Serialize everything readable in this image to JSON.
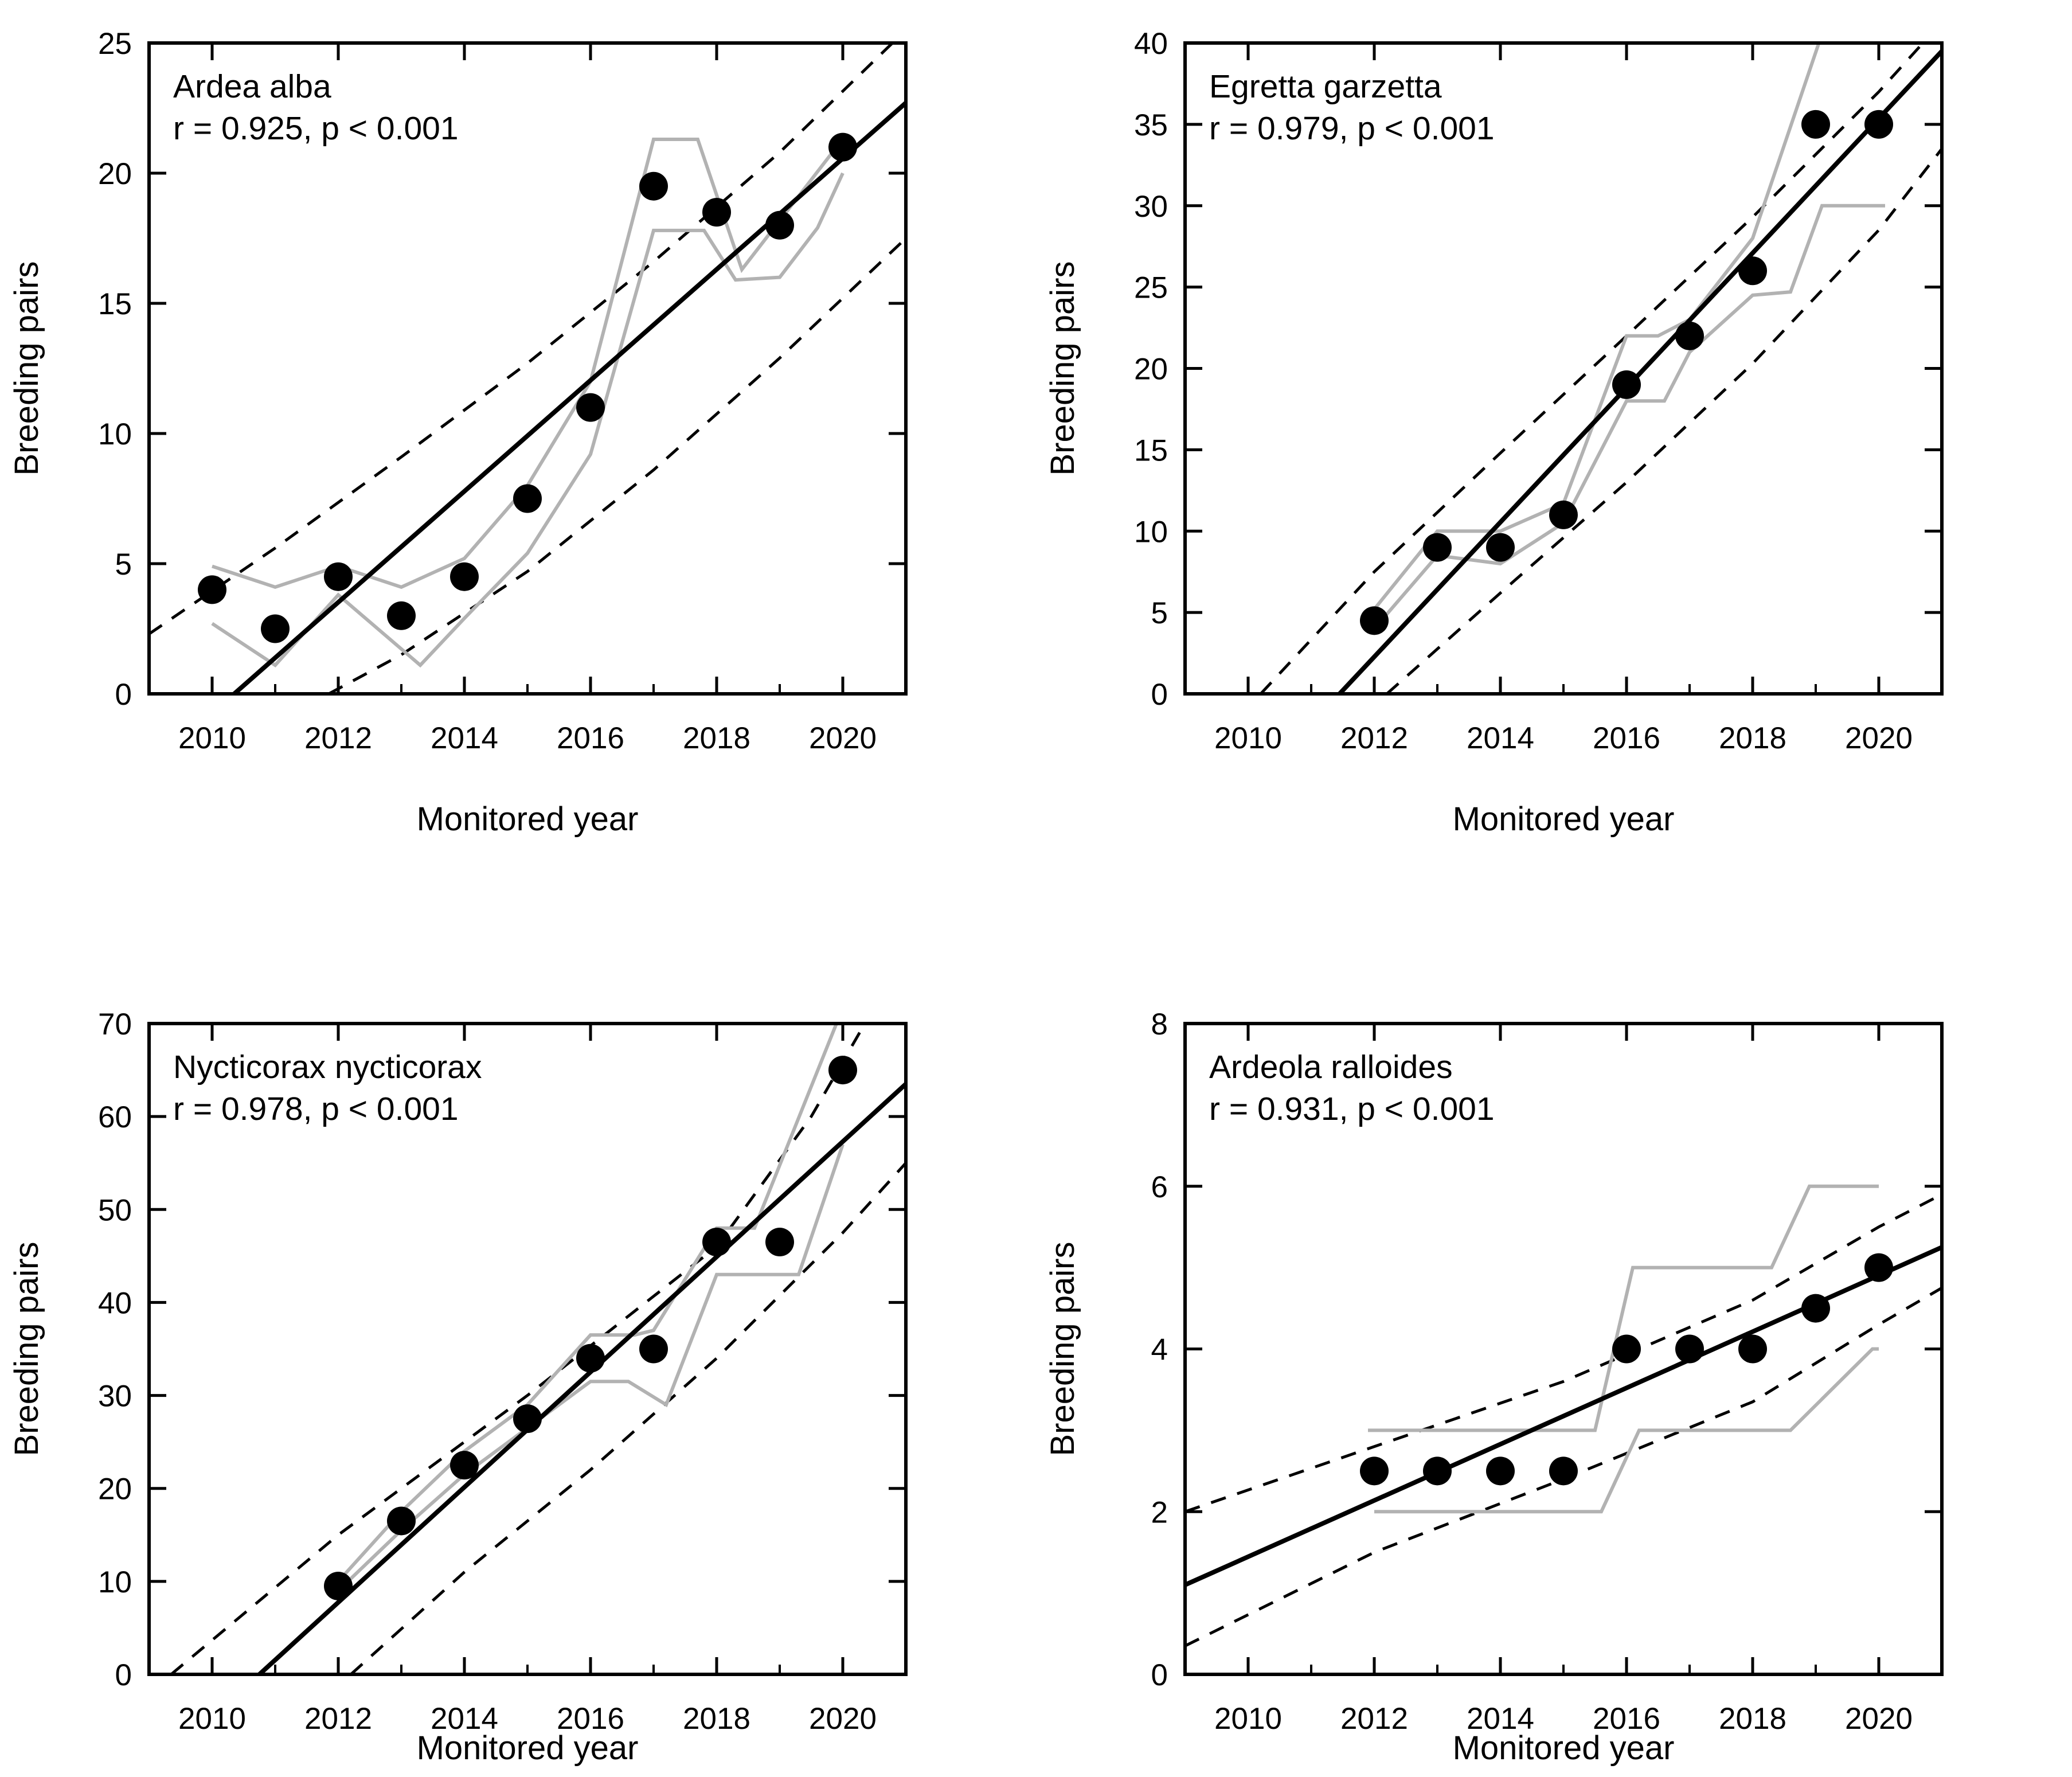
{
  "page": {
    "background": "#ffffff"
  },
  "colors": {
    "points": "#000000",
    "regression": "#000000",
    "confidence": "#000000",
    "range": "#b2b2b2",
    "frame": "#000000",
    "text": "#000000"
  },
  "chart_data": [
    {
      "type": "scatter",
      "species": "Ardea alba",
      "stats_label": "r = 0.925, p < 0.001",
      "xlabel": "Monitored year",
      "ylabel": "Breeding pairs",
      "xlim": [
        2009,
        2021
      ],
      "ylim": [
        0,
        25
      ],
      "x_ticks": [
        2010,
        2012,
        2014,
        2016,
        2018,
        2020
      ],
      "x_minor_ticks": [
        2009,
        2011,
        2013,
        2015,
        2017,
        2019,
        2021
      ],
      "y_ticks": [
        0,
        5,
        10,
        15,
        20,
        25
      ],
      "points": [
        [
          2010,
          4
        ],
        [
          2011,
          2.5
        ],
        [
          2012,
          4.5
        ],
        [
          2013,
          3
        ],
        [
          2014,
          4.5
        ],
        [
          2015,
          7.5
        ],
        [
          2016,
          11
        ],
        [
          2017,
          19.5
        ],
        [
          2018,
          18.5
        ],
        [
          2019,
          18
        ],
        [
          2020,
          21
        ]
      ],
      "regression_line": [
        [
          2010.35,
          0
        ],
        [
          2021,
          22.7
        ]
      ],
      "ci_upper": [
        [
          2009,
          2.3
        ],
        [
          2011,
          5.6
        ],
        [
          2013,
          9.1
        ],
        [
          2015,
          12.7
        ],
        [
          2017,
          16.6
        ],
        [
          2019,
          20.8
        ],
        [
          2021,
          25.5
        ]
      ],
      "ci_lower": [
        [
          2011.85,
          0
        ],
        [
          2013,
          1.5
        ],
        [
          2015,
          4.7
        ],
        [
          2017,
          8.6
        ],
        [
          2019,
          12.9
        ],
        [
          2021,
          17.5
        ]
      ],
      "range_upper": [
        [
          2010,
          4.9
        ],
        [
          2011,
          4.1
        ],
        [
          2012,
          4.9
        ],
        [
          2013,
          4.1
        ],
        [
          2014,
          5.2
        ],
        [
          2015,
          8
        ],
        [
          2016,
          12
        ],
        [
          2017,
          21.3
        ],
        [
          2017.7,
          21.3
        ],
        [
          2018.4,
          16.3
        ],
        [
          2019.9,
          21
        ],
        [
          2020,
          20.8
        ]
      ],
      "range_lower": [
        [
          2010,
          2.7
        ],
        [
          2011,
          1.1
        ],
        [
          2012,
          3.8
        ],
        [
          2013.3,
          1.1
        ],
        [
          2014,
          2.9
        ],
        [
          2015,
          5.4
        ],
        [
          2016,
          9.2
        ],
        [
          2017,
          17.8
        ],
        [
          2017.8,
          17.8
        ],
        [
          2018.3,
          15.9
        ],
        [
          2019,
          16
        ],
        [
          2019.6,
          17.9
        ],
        [
          2020,
          20
        ]
      ]
    },
    {
      "type": "scatter",
      "species": "Egretta garzetta",
      "stats_label": "r = 0.979, p < 0.001",
      "xlabel": "Monitored year",
      "ylabel": "Breeding pairs",
      "xlim": [
        2009,
        2021
      ],
      "ylim": [
        0,
        40
      ],
      "x_ticks": [
        2010,
        2012,
        2014,
        2016,
        2018,
        2020
      ],
      "x_minor_ticks": [
        2009,
        2011,
        2013,
        2015,
        2017,
        2019,
        2021
      ],
      "y_ticks": [
        0,
        5,
        10,
        15,
        20,
        25,
        30,
        35,
        40
      ],
      "points": [
        [
          2012,
          4.5
        ],
        [
          2013,
          9
        ],
        [
          2014,
          9
        ],
        [
          2015,
          11
        ],
        [
          2016,
          19
        ],
        [
          2017,
          22
        ],
        [
          2018,
          26
        ],
        [
          2019,
          35
        ],
        [
          2020,
          35
        ]
      ],
      "regression_line": [
        [
          2011.45,
          0
        ],
        [
          2021,
          39.5
        ]
      ],
      "ci_upper": [
        [
          2010.2,
          0
        ],
        [
          2012,
          7.5
        ],
        [
          2014,
          14.8
        ],
        [
          2016,
          22
        ],
        [
          2018,
          29.3
        ],
        [
          2020,
          37
        ],
        [
          2020.7,
          40
        ]
      ],
      "ci_lower": [
        [
          2012.2,
          0
        ],
        [
          2014,
          6.2
        ],
        [
          2016,
          13
        ],
        [
          2018,
          20.3
        ],
        [
          2020,
          28.5
        ],
        [
          2021,
          33.5
        ]
      ],
      "range_upper": [
        [
          2012,
          5.2
        ],
        [
          2013,
          10
        ],
        [
          2014,
          10
        ],
        [
          2015,
          11.7
        ],
        [
          2016,
          22
        ],
        [
          2016.5,
          22
        ],
        [
          2017,
          23
        ],
        [
          2018,
          28
        ],
        [
          2019.05,
          40
        ]
      ],
      "range_lower": [
        [
          2012,
          4
        ],
        [
          2013,
          8.5
        ],
        [
          2014,
          8
        ],
        [
          2015,
          10.5
        ],
        [
          2016,
          18
        ],
        [
          2016.6,
          18
        ],
        [
          2017,
          21
        ],
        [
          2018,
          24.5
        ],
        [
          2018.6,
          24.7
        ],
        [
          2019.1,
          30
        ],
        [
          2020.1,
          30
        ]
      ]
    },
    {
      "type": "scatter",
      "species": "Nycticorax nycticorax",
      "stats_label": "r = 0.978, p < 0.001",
      "xlabel": "Monitored year",
      "ylabel": "Breeding pairs",
      "xlim": [
        2009,
        2021
      ],
      "ylim": [
        0,
        70
      ],
      "x_ticks": [
        2010,
        2012,
        2014,
        2016,
        2018,
        2020
      ],
      "x_minor_ticks": [
        2009,
        2011,
        2013,
        2015,
        2017,
        2019,
        2021
      ],
      "y_ticks": [
        0,
        10,
        20,
        30,
        40,
        50,
        60,
        70
      ],
      "points": [
        [
          2012,
          9.5
        ],
        [
          2013,
          16.5
        ],
        [
          2014,
          22.5
        ],
        [
          2015,
          27.5
        ],
        [
          2016,
          34
        ],
        [
          2017,
          35
        ],
        [
          2018,
          46.5
        ],
        [
          2019,
          46.5
        ],
        [
          2020,
          65
        ]
      ],
      "regression_line": [
        [
          2010.75,
          0
        ],
        [
          2021,
          63.5
        ]
      ],
      "ci_upper": [
        [
          2009.35,
          0
        ],
        [
          2012,
          15
        ],
        [
          2015,
          30
        ],
        [
          2018,
          46
        ],
        [
          2019.5,
          60
        ],
        [
          2020.35,
          70
        ]
      ],
      "ci_lower": [
        [
          2012.2,
          0
        ],
        [
          2014,
          11
        ],
        [
          2016,
          22
        ],
        [
          2018,
          34
        ],
        [
          2020,
          47.5
        ],
        [
          2021,
          55
        ]
      ],
      "range_upper": [
        [
          2012,
          10
        ],
        [
          2013,
          17.5
        ],
        [
          2014,
          24
        ],
        [
          2015,
          29
        ],
        [
          2016,
          36.5
        ],
        [
          2016.7,
          36.5
        ],
        [
          2017,
          37
        ],
        [
          2018,
          48
        ],
        [
          2018.6,
          48
        ],
        [
          2019.9,
          70
        ]
      ],
      "range_lower": [
        [
          2012,
          9
        ],
        [
          2013,
          15.5
        ],
        [
          2014,
          21.5
        ],
        [
          2015,
          26.5
        ],
        [
          2016,
          31.5
        ],
        [
          2016.6,
          31.5
        ],
        [
          2017.2,
          29
        ],
        [
          2018,
          43
        ],
        [
          2019.3,
          43
        ],
        [
          2020,
          57
        ]
      ]
    },
    {
      "type": "scatter",
      "species": "Ardeola ralloides",
      "stats_label": "r = 0.931, p < 0.001",
      "xlabel": "Monitored year",
      "ylabel": "Breeding pairs",
      "xlim": [
        2009,
        2021
      ],
      "ylim": [
        0,
        8
      ],
      "x_ticks": [
        2010,
        2012,
        2014,
        2016,
        2018,
        2020
      ],
      "x_minor_ticks": [
        2009,
        2011,
        2013,
        2015,
        2017,
        2019,
        2021
      ],
      "y_ticks": [
        0,
        2,
        4,
        6,
        8
      ],
      "points": [
        [
          2012,
          2.5
        ],
        [
          2013,
          2.5
        ],
        [
          2014,
          2.5
        ],
        [
          2015,
          2.5
        ],
        [
          2016,
          4
        ],
        [
          2017,
          4
        ],
        [
          2018,
          4
        ],
        [
          2019,
          4.5
        ],
        [
          2020,
          5
        ]
      ],
      "regression_line": [
        [
          2009,
          1.1
        ],
        [
          2021,
          5.25
        ]
      ],
      "ci_upper": [
        [
          2009,
          2.0
        ],
        [
          2012,
          2.8
        ],
        [
          2015,
          3.6
        ],
        [
          2018,
          4.6
        ],
        [
          2020,
          5.5
        ],
        [
          2021,
          5.9
        ]
      ],
      "ci_lower": [
        [
          2009,
          0.35
        ],
        [
          2012,
          1.5
        ],
        [
          2015,
          2.4
        ],
        [
          2018,
          3.35
        ],
        [
          2020,
          4.3
        ],
        [
          2021,
          4.75
        ]
      ],
      "range_upper": [
        [
          2011.9,
          3
        ],
        [
          2015.5,
          3
        ],
        [
          2016.1,
          5
        ],
        [
          2018.3,
          5
        ],
        [
          2018.9,
          6
        ],
        [
          2020,
          6
        ]
      ],
      "range_lower": [
        [
          2012,
          2
        ],
        [
          2015.6,
          2
        ],
        [
          2016.2,
          3
        ],
        [
          2018.6,
          3
        ],
        [
          2019.9,
          4
        ],
        [
          2020,
          4
        ]
      ]
    }
  ]
}
